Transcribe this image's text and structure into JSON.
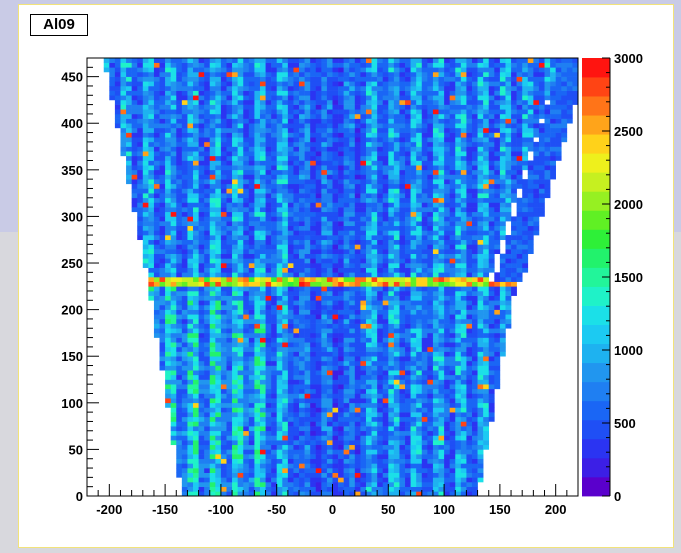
{
  "chart_data": {
    "type": "heatmap",
    "title": "Al09",
    "xlabel": "",
    "ylabel": "",
    "xlim": [
      -220,
      220
    ],
    "ylim": [
      0,
      470
    ],
    "zlim": [
      0,
      3000
    ],
    "x_ticks": [
      -200,
      -150,
      -100,
      -50,
      0,
      50,
      100,
      150,
      200
    ],
    "y_ticks": [
      0,
      50,
      100,
      150,
      200,
      250,
      300,
      350,
      400,
      450
    ],
    "z_ticks": [
      0,
      500,
      1000,
      1500,
      2000,
      2500,
      3000
    ],
    "bin_width": [
      5,
      5
    ],
    "regions": [
      {
        "name": "upper",
        "y_range": [
          230,
          470
        ],
        "x_bottom": [
          -165,
          140
        ],
        "x_top": [
          -205,
          205
        ]
      },
      {
        "name": "lower",
        "y_range": [
          0,
          230
        ],
        "x_bottom": [
          -135,
          130
        ],
        "x_top": [
          -165,
          165
        ]
      }
    ],
    "hot_row": {
      "y": 232,
      "value": 2100
    },
    "diagonal_strip": {
      "x_bottom": [
        145,
        170
      ],
      "x_top": [
        205,
        230
      ],
      "y_range": [
        230,
        470
      ]
    },
    "low_band": {
      "x_range": [
        -30,
        25
      ],
      "value": 380
    },
    "typical_value": 900,
    "palette": [
      "#5a00cc",
      "#3c1fe6",
      "#2b34f2",
      "#1f4ff5",
      "#1a66f5",
      "#1f7ff2",
      "#2196ef",
      "#1eb2f0",
      "#1ccaf2",
      "#1be0e8",
      "#1ff2c8",
      "#22f59a",
      "#22f26c",
      "#2ef038",
      "#60f024",
      "#96f022",
      "#c6f020",
      "#eef01c",
      "#ffd21a",
      "#ffa41a",
      "#ff7418",
      "#ff4414",
      "#ff1410"
    ]
  }
}
